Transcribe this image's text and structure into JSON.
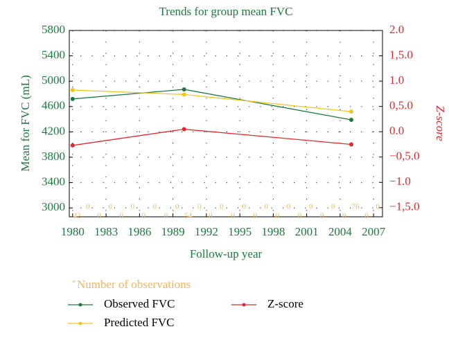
{
  "chart_data": {
    "type": "line",
    "title": "Trends for group mean FVC",
    "xlabel": "Follow-up year",
    "ylabel": "Mean for FVC (mL)",
    "y2label": "Z-score",
    "x": [
      1980,
      1990,
      2005
    ],
    "series": [
      {
        "name": "Observed FVC",
        "color": "#1b7a3e",
        "values": [
          4720,
          4870,
          4390
        ]
      },
      {
        "name": "Predicted FVC",
        "color": "#f2c51c",
        "values": [
          4860,
          4790,
          4520
        ]
      },
      {
        "name": "Z-score",
        "color": "#e5262b",
        "axis": "y2",
        "values": [
          -0.27,
          0.05,
          -0.25
        ]
      }
    ],
    "xlim": [
      1979.7,
      2007.8
    ],
    "xticks": [
      1980,
      1983,
      1986,
      1989,
      1992,
      1995,
      1998,
      2001,
      2004,
      2007
    ],
    "ylim": [
      2860,
      5800
    ],
    "yticks": [
      3000,
      3400,
      3800,
      4200,
      4600,
      5000,
      5400,
      5800
    ],
    "y2lim": [
      -1.68,
      2.0
    ],
    "y2ticks": [
      {
        "value": -1.5,
        "label": "−1,5.0"
      },
      {
        "value": -1,
        "label": "−1.0"
      },
      {
        "value": -0.5,
        "label": "−0,5.0"
      },
      {
        "value": 0,
        "label": "0.0"
      },
      {
        "value": 0.5,
        "label": "0,5.0"
      },
      {
        "value": 1,
        "label": "1.0"
      },
      {
        "value": 1.5,
        "label": "1,5.0"
      },
      {
        "value": 2,
        "label": "2.0"
      }
    ],
    "grid": true,
    "observations": {
      "marker": "*",
      "label": "Number of observations",
      "color": "#f3b660",
      "years": [
        1980,
        1981,
        1982,
        1983,
        1984,
        1985,
        1986,
        1987,
        1988,
        1989,
        1990,
        1991,
        1992,
        1993,
        1994,
        1995,
        1996,
        1997,
        1998,
        1999,
        2000,
        2001,
        2002,
        2003,
        2004,
        2005,
        2006,
        2007
      ],
      "counts": [
        42,
        0,
        0,
        0,
        0,
        0,
        0,
        0,
        0,
        0,
        54,
        0,
        0,
        0,
        0,
        0,
        0,
        0,
        0,
        0,
        0,
        0,
        0,
        0,
        0,
        76,
        0,
        0
      ]
    }
  }
}
